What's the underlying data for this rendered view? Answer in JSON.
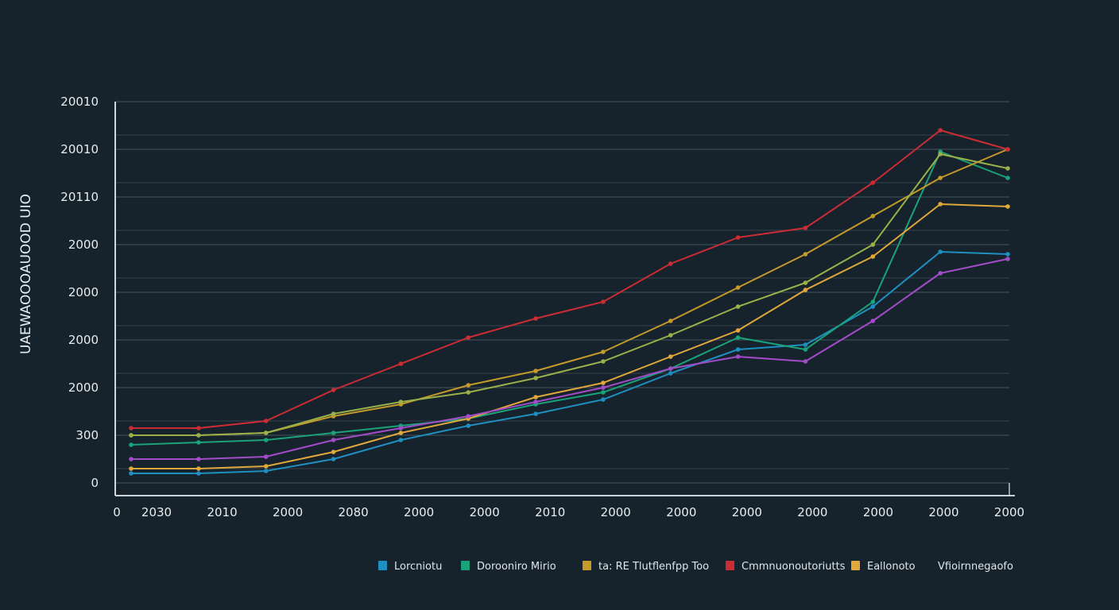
{
  "chart_data": {
    "type": "line",
    "title": "",
    "ylabel": "UAEWAOOOAUOOD UIO",
    "xlabel": "",
    "grid": true,
    "legend_position": "bottom-right",
    "x": [
      1,
      2,
      3,
      4,
      5,
      6,
      7,
      8,
      9,
      10,
      11,
      12,
      13,
      14
    ],
    "x_tick_labels": [
      "0",
      "2030",
      "2010",
      "2000",
      "2080",
      "2000",
      "2000",
      "2010",
      "2000",
      "2000",
      "2000",
      "2000",
      "2000",
      "2000",
      "2000"
    ],
    "y_tick_labels": [
      "0",
      "300",
      "2000",
      "2000",
      "2000",
      "2000",
      "20110",
      "20010",
      "20010"
    ],
    "y_tick_values": [
      0,
      1,
      2,
      3,
      4,
      5,
      6,
      7,
      8
    ],
    "ylim": [
      0,
      8
    ],
    "series": [
      {
        "name": "Lorcniotu",
        "color": "#1f8fc0",
        "values": [
          0.2,
          0.2,
          0.25,
          0.5,
          0.9,
          1.2,
          1.45,
          1.75,
          2.3,
          2.8,
          2.9,
          3.7,
          4.85,
          4.8
        ]
      },
      {
        "name": "Dorooniro Mirio",
        "color": "#1aa37a",
        "values": [
          0.8,
          0.85,
          0.9,
          1.05,
          1.2,
          1.35,
          1.65,
          1.9,
          2.4,
          3.05,
          2.8,
          3.8,
          6.95,
          6.4
        ]
      },
      {
        "name": "ta: RE Tlutflenfpp Too",
        "color": "#c49a2a",
        "values": [
          1.0,
          1.0,
          1.05,
          1.4,
          1.65,
          2.05,
          2.35,
          2.75,
          3.4,
          4.1,
          4.8,
          5.6,
          6.4,
          7.0
        ]
      },
      {
        "name": "Cmmnuonoutoriutts",
        "color": "#cc2c34",
        "values": [
          1.15,
          1.15,
          1.3,
          1.95,
          2.5,
          3.05,
          3.45,
          3.8,
          4.6,
          5.15,
          5.35,
          6.3,
          7.4,
          7.0
        ]
      },
      {
        "name": "Eallonoto",
        "color": "#e0a83a",
        "values": [
          0.3,
          0.3,
          0.35,
          0.65,
          1.05,
          1.35,
          1.8,
          2.1,
          2.65,
          3.2,
          4.05,
          4.75,
          5.85,
          5.8
        ]
      },
      {
        "name": "Vfioirnnegaofo",
        "color": "#a24cc8",
        "values": [
          0.5,
          0.5,
          0.55,
          0.9,
          1.15,
          1.4,
          1.7,
          2.0,
          2.4,
          2.65,
          2.55,
          3.4,
          4.4,
          4.7
        ]
      },
      {
        "name": "",
        "color": "#9ab04a",
        "values": [
          1.0,
          1.0,
          1.05,
          1.45,
          1.7,
          1.9,
          2.2,
          2.55,
          3.1,
          3.7,
          4.2,
          5.0,
          6.9,
          6.6
        ]
      }
    ]
  }
}
